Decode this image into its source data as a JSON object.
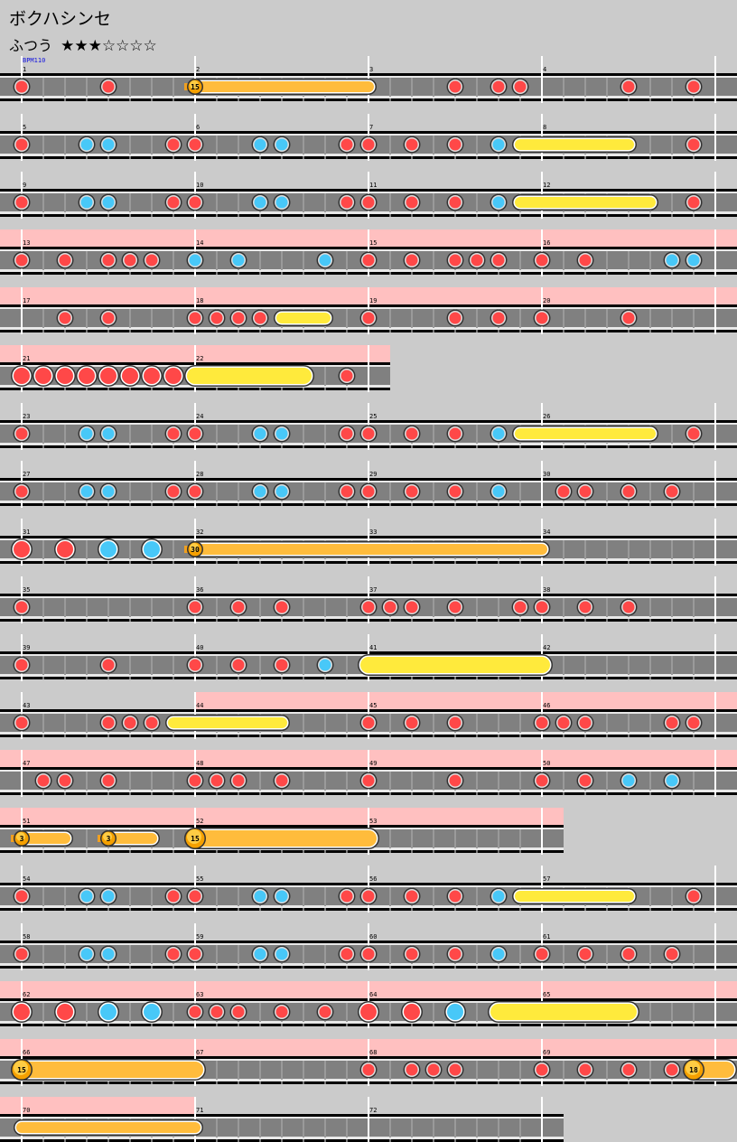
{
  "song_title": "ボクハシンセ",
  "difficulty": {
    "label": "ふつう",
    "stars_filled": 3,
    "stars_total": 7,
    "stars_text": "★★★☆☆☆☆"
  },
  "bpm_label": "BPM110",
  "colors": {
    "don": "#ff4848",
    "ka": "#48c8f8",
    "roll": "#ffea3c",
    "balloon": "#ffbc3c",
    "gogo": "#ffc0c0",
    "lane": "#808080",
    "background": "#cbcbcb"
  },
  "note_legend": {
    "d": "don",
    "k": "ka",
    "D": "big don",
    "K": "big ka",
    "r": "drumroll",
    "R": "big drumroll",
    "b": "balloon",
    "B": "big balloon"
  },
  "rows": [
    {
      "measures": [
        1,
        2,
        3,
        4
      ],
      "gogo": null,
      "notes": [
        [
          0,
          "d"
        ],
        [
          4,
          "d"
        ],
        [
          20,
          "d"
        ],
        [
          22,
          "d"
        ],
        [
          23,
          "d"
        ],
        [
          28,
          "d"
        ],
        [
          31,
          "d"
        ]
      ],
      "long": [
        [
          8,
          16,
          "b",
          15
        ]
      ]
    },
    {
      "measures": [
        5,
        6,
        7,
        8
      ],
      "gogo": null,
      "notes": [
        [
          0,
          "d"
        ],
        [
          3,
          "k"
        ],
        [
          4,
          "k"
        ],
        [
          7,
          "d"
        ],
        [
          8,
          "d"
        ],
        [
          11,
          "k"
        ],
        [
          12,
          "k"
        ],
        [
          15,
          "d"
        ],
        [
          16,
          "d"
        ],
        [
          18,
          "d"
        ],
        [
          20,
          "d"
        ],
        [
          22,
          "k"
        ],
        [
          31,
          "d"
        ]
      ],
      "long": [
        [
          23,
          28,
          "r"
        ]
      ]
    },
    {
      "measures": [
        9,
        10,
        11,
        12
      ],
      "gogo": null,
      "notes": [
        [
          0,
          "d"
        ],
        [
          3,
          "k"
        ],
        [
          4,
          "k"
        ],
        [
          7,
          "d"
        ],
        [
          8,
          "d"
        ],
        [
          11,
          "k"
        ],
        [
          12,
          "k"
        ],
        [
          15,
          "d"
        ],
        [
          16,
          "d"
        ],
        [
          18,
          "d"
        ],
        [
          20,
          "d"
        ],
        [
          22,
          "k"
        ],
        [
          31,
          "d"
        ]
      ],
      "long": [
        [
          23,
          29,
          "r"
        ]
      ]
    },
    {
      "measures": [
        13,
        14,
        15,
        16
      ],
      "gogo": [
        null,
        null
      ],
      "notes": [
        [
          0,
          "d"
        ],
        [
          2,
          "d"
        ],
        [
          4,
          "d"
        ],
        [
          5,
          "d"
        ],
        [
          6,
          "d"
        ],
        [
          8,
          "k"
        ],
        [
          10,
          "k"
        ],
        [
          14,
          "k"
        ],
        [
          16,
          "d"
        ],
        [
          18,
          "d"
        ],
        [
          20,
          "d"
        ],
        [
          21,
          "d"
        ],
        [
          22,
          "d"
        ],
        [
          24,
          "d"
        ],
        [
          26,
          "d"
        ],
        [
          30,
          "k"
        ],
        [
          31,
          "k"
        ]
      ],
      "long": []
    },
    {
      "measures": [
        17,
        18,
        19,
        20
      ],
      "gogo": [
        null,
        null
      ],
      "notes": [
        [
          2,
          "d"
        ],
        [
          4,
          "d"
        ],
        [
          8,
          "d"
        ],
        [
          9,
          "d"
        ],
        [
          10,
          "d"
        ],
        [
          11,
          "d"
        ],
        [
          16,
          "d"
        ],
        [
          20,
          "d"
        ],
        [
          22,
          "d"
        ],
        [
          24,
          "d"
        ],
        [
          28,
          "d"
        ]
      ],
      "long": [
        [
          12,
          14,
          "r"
        ]
      ]
    },
    {
      "measures": [
        21,
        22
      ],
      "gogo": [
        null,
        null
      ],
      "notes": [
        [
          0,
          "D"
        ],
        [
          1,
          "D"
        ],
        [
          2,
          "D"
        ],
        [
          3,
          "D"
        ],
        [
          4,
          "D"
        ],
        [
          5,
          "D"
        ],
        [
          6,
          "D"
        ],
        [
          7,
          "D"
        ],
        [
          15,
          "d"
        ]
      ],
      "long": [
        [
          8,
          13,
          "R"
        ]
      ]
    },
    {
      "measures": [
        23,
        24,
        25,
        26
      ],
      "gogo": null,
      "notes": [
        [
          0,
          "d"
        ],
        [
          3,
          "k"
        ],
        [
          4,
          "k"
        ],
        [
          7,
          "d"
        ],
        [
          8,
          "d"
        ],
        [
          11,
          "k"
        ],
        [
          12,
          "k"
        ],
        [
          15,
          "d"
        ],
        [
          16,
          "d"
        ],
        [
          18,
          "d"
        ],
        [
          20,
          "d"
        ],
        [
          22,
          "k"
        ],
        [
          31,
          "d"
        ]
      ],
      "long": [
        [
          23,
          29,
          "r"
        ]
      ]
    },
    {
      "measures": [
        27,
        28,
        29,
        30
      ],
      "gogo": null,
      "notes": [
        [
          0,
          "d"
        ],
        [
          3,
          "k"
        ],
        [
          4,
          "k"
        ],
        [
          7,
          "d"
        ],
        [
          8,
          "d"
        ],
        [
          11,
          "k"
        ],
        [
          12,
          "k"
        ],
        [
          15,
          "d"
        ],
        [
          16,
          "d"
        ],
        [
          18,
          "d"
        ],
        [
          20,
          "d"
        ],
        [
          22,
          "k"
        ],
        [
          25,
          "d"
        ],
        [
          26,
          "d"
        ],
        [
          28,
          "d"
        ],
        [
          30,
          "d"
        ]
      ],
      "long": []
    },
    {
      "measures": [
        31,
        32,
        33,
        34
      ],
      "gogo": null,
      "notes": [
        [
          0,
          "D"
        ],
        [
          2,
          "D"
        ],
        [
          4,
          "K"
        ],
        [
          6,
          "K"
        ]
      ],
      "long": [
        [
          8,
          24,
          "b",
          30
        ]
      ]
    },
    {
      "measures": [
        35,
        36,
        37,
        38
      ],
      "gogo": null,
      "notes": [
        [
          0,
          "d"
        ],
        [
          8,
          "d"
        ],
        [
          10,
          "d"
        ],
        [
          12,
          "d"
        ],
        [
          16,
          "d"
        ],
        [
          17,
          "d"
        ],
        [
          18,
          "d"
        ],
        [
          20,
          "d"
        ],
        [
          23,
          "d"
        ],
        [
          24,
          "d"
        ],
        [
          26,
          "d"
        ],
        [
          28,
          "d"
        ]
      ],
      "long": []
    },
    {
      "measures": [
        39,
        40,
        41,
        42
      ],
      "gogo": null,
      "notes": [
        [
          0,
          "d"
        ],
        [
          4,
          "d"
        ],
        [
          8,
          "d"
        ],
        [
          10,
          "d"
        ],
        [
          12,
          "d"
        ],
        [
          14,
          "k"
        ]
      ],
      "long": [
        [
          16,
          24,
          "R"
        ]
      ]
    },
    {
      "measures": [
        43,
        44,
        45,
        46
      ],
      "gogo": [
        8,
        null
      ],
      "notes": [
        [
          0,
          "d"
        ],
        [
          4,
          "d"
        ],
        [
          5,
          "d"
        ],
        [
          6,
          "d"
        ],
        [
          16,
          "d"
        ],
        [
          18,
          "d"
        ],
        [
          20,
          "d"
        ],
        [
          24,
          "d"
        ],
        [
          25,
          "d"
        ],
        [
          26,
          "d"
        ],
        [
          30,
          "d"
        ],
        [
          31,
          "d"
        ]
      ],
      "long": [
        [
          7,
          12,
          "r"
        ]
      ]
    },
    {
      "measures": [
        47,
        48,
        49,
        50
      ],
      "gogo": [
        null,
        null
      ],
      "notes": [
        [
          1,
          "d"
        ],
        [
          2,
          "d"
        ],
        [
          4,
          "d"
        ],
        [
          8,
          "d"
        ],
        [
          9,
          "d"
        ],
        [
          10,
          "d"
        ],
        [
          12,
          "d"
        ],
        [
          16,
          "d"
        ],
        [
          20,
          "d"
        ],
        [
          24,
          "d"
        ],
        [
          26,
          "d"
        ],
        [
          28,
          "k"
        ],
        [
          30,
          "k"
        ]
      ],
      "long": []
    },
    {
      "measures": [
        51,
        52,
        53
      ],
      "gogo": [
        null,
        null
      ],
      "notes": [],
      "long": [
        [
          0,
          2,
          "b",
          3
        ],
        [
          4,
          6,
          "b",
          3
        ],
        [
          8,
          16,
          "B",
          15
        ]
      ]
    },
    {
      "measures": [
        54,
        55,
        56,
        57
      ],
      "gogo": null,
      "notes": [
        [
          0,
          "d"
        ],
        [
          3,
          "k"
        ],
        [
          4,
          "k"
        ],
        [
          7,
          "d"
        ],
        [
          8,
          "d"
        ],
        [
          11,
          "k"
        ],
        [
          12,
          "k"
        ],
        [
          15,
          "d"
        ],
        [
          16,
          "d"
        ],
        [
          18,
          "d"
        ],
        [
          20,
          "d"
        ],
        [
          22,
          "k"
        ],
        [
          31,
          "d"
        ]
      ],
      "long": [
        [
          23,
          28,
          "r"
        ]
      ]
    },
    {
      "measures": [
        58,
        59,
        60,
        61
      ],
      "gogo": null,
      "notes": [
        [
          0,
          "d"
        ],
        [
          3,
          "k"
        ],
        [
          4,
          "k"
        ],
        [
          7,
          "d"
        ],
        [
          8,
          "d"
        ],
        [
          11,
          "k"
        ],
        [
          12,
          "k"
        ],
        [
          15,
          "d"
        ],
        [
          16,
          "d"
        ],
        [
          18,
          "d"
        ],
        [
          20,
          "d"
        ],
        [
          22,
          "k"
        ],
        [
          24,
          "d"
        ],
        [
          26,
          "d"
        ],
        [
          28,
          "d"
        ],
        [
          30,
          "d"
        ]
      ],
      "long": []
    },
    {
      "measures": [
        62,
        63,
        64,
        65
      ],
      "gogo": [
        null,
        null
      ],
      "notes": [
        [
          0,
          "D"
        ],
        [
          2,
          "D"
        ],
        [
          4,
          "K"
        ],
        [
          6,
          "K"
        ],
        [
          8,
          "d"
        ],
        [
          9,
          "d"
        ],
        [
          10,
          "d"
        ],
        [
          12,
          "d"
        ],
        [
          14,
          "d"
        ],
        [
          16,
          "D"
        ],
        [
          18,
          "D"
        ],
        [
          20,
          "K"
        ]
      ],
      "long": [
        [
          22,
          28,
          "R"
        ]
      ]
    },
    {
      "measures": [
        66,
        67,
        68,
        69
      ],
      "gogo": [
        null,
        null
      ],
      "notes": [
        [
          16,
          "d"
        ],
        [
          18,
          "d"
        ],
        [
          19,
          "d"
        ],
        [
          20,
          "d"
        ],
        [
          24,
          "d"
        ],
        [
          26,
          "d"
        ],
        [
          28,
          "d"
        ],
        [
          30,
          "d"
        ]
      ],
      "long": [
        [
          0,
          8,
          "B",
          15
        ],
        [
          31,
          33,
          "B",
          18
        ]
      ]
    },
    {
      "measures": [
        70,
        71,
        72
      ],
      "gogo": [
        null,
        8
      ],
      "notes": [],
      "long": [
        [
          0,
          8,
          "c"
        ]
      ]
    }
  ]
}
